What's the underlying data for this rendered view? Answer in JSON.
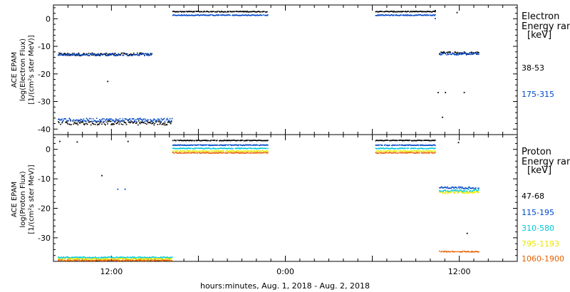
{
  "xlabel": "hours:minutes, Aug.  1, 2018 - Aug.  2, 2018",
  "x_ticks": [
    "12:00",
    "0:00",
    "12:00"
  ],
  "x_tick_hours": [
    12,
    24,
    36
  ],
  "x_range_hours": [
    8.0,
    40.0
  ],
  "colors": {
    "black": "#000000",
    "blue": "#0047c8",
    "cyan": "#00c8d8",
    "yellow": "#e8e800",
    "orange": "#e86000"
  },
  "chart_data": [
    {
      "type": "scatter",
      "id": "electron",
      "ylabel": [
        "ACE EPAM",
        "log(Electron Flux)",
        "[1/(cm²s ster MeV)]"
      ],
      "ylim": [
        -42,
        5
      ],
      "y_ticks": [
        0,
        -10,
        -20,
        -30,
        -40
      ],
      "grid": false,
      "legend_title": [
        "Electron",
        "Energy ranges",
        "[keV]"
      ],
      "series": [
        {
          "name": "38-53",
          "color": "#000000",
          "segments": [
            {
              "x0": 8.3,
              "x1": 14.8,
              "y": -12.7,
              "jitter": 0.5
            },
            {
              "x0": 16.2,
              "x1": 22.8,
              "y": 2.8,
              "jitter": 0.15
            },
            {
              "x0": 30.2,
              "x1": 34.3,
              "y": 2.8,
              "jitter": 0.15
            },
            {
              "x0": 34.6,
              "x1": 37.3,
              "y": -12.2,
              "jitter": 0.5
            },
            {
              "x0": 8.3,
              "x1": 16.2,
              "y": -37.5,
              "jitter": 0.8
            }
          ],
          "points": [
            [
              11.7,
              -22.5
            ],
            [
              34.5,
              -26.5
            ],
            [
              35.0,
              -26.5
            ],
            [
              36.3,
              -26.5
            ],
            [
              34.8,
              -35.5
            ],
            [
              34.3,
              3.2
            ],
            [
              35.8,
              2.5
            ]
          ]
        },
        {
          "name": "175-315",
          "color": "#0047c8",
          "segments": [
            {
              "x0": 8.3,
              "x1": 14.8,
              "y": -12.8,
              "jitter": 0.4
            },
            {
              "x0": 16.2,
              "x1": 22.8,
              "y": 1.5,
              "jitter": 0.15
            },
            {
              "x0": 30.2,
              "x1": 34.3,
              "y": 1.5,
              "jitter": 0.15
            },
            {
              "x0": 34.6,
              "x1": 37.3,
              "y": -12.5,
              "jitter": 0.4
            },
            {
              "x0": 8.3,
              "x1": 16.2,
              "y": -36.5,
              "jitter": 0.6
            }
          ],
          "points": [
            [
              34.3,
              0.3
            ]
          ]
        }
      ]
    },
    {
      "type": "scatter",
      "id": "proton",
      "ylabel": [
        "ACE EPAM",
        "log(Proton Flux)",
        "[1/(cm²s ster MeV)]"
      ],
      "ylim": [
        -38,
        5
      ],
      "y_ticks": [
        0,
        -10,
        -20,
        -30
      ],
      "grid": false,
      "legend_title": [
        "Proton",
        "Energy ranges",
        "[keV]"
      ],
      "series": [
        {
          "name": "47-68",
          "color": "#000000",
          "segments": [
            {
              "x0": 16.2,
              "x1": 22.8,
              "y": 3.2,
              "jitter": 0.12
            },
            {
              "x0": 30.2,
              "x1": 34.3,
              "y": 3.2,
              "jitter": 0.12
            }
          ],
          "points": [
            [
              8.4,
              2.9
            ],
            [
              9.6,
              2.7
            ],
            [
              11.3,
              -8.7
            ],
            [
              13.1,
              2.9
            ],
            [
              36.5,
              -28.3
            ],
            [
              35.9,
              2.5
            ]
          ]
        },
        {
          "name": "115-195",
          "color": "#0047c8",
          "segments": [
            {
              "x0": 16.2,
              "x1": 22.8,
              "y": 1.6,
              "jitter": 0.12
            },
            {
              "x0": 30.2,
              "x1": 34.3,
              "y": 1.6,
              "jitter": 0.12
            },
            {
              "x0": 34.6,
              "x1": 37.3,
              "y": -12.8,
              "jitter": 0.3
            }
          ],
          "points": [
            [
              12.4,
              -13.3
            ],
            [
              12.9,
              -13.3
            ]
          ]
        },
        {
          "name": "310-580",
          "color": "#00c8d8",
          "segments": [
            {
              "x0": 8.3,
              "x1": 16.2,
              "y": -36.5,
              "jitter": 0.2
            },
            {
              "x0": 16.2,
              "x1": 22.8,
              "y": 0.5,
              "jitter": 0.12
            },
            {
              "x0": 30.2,
              "x1": 34.3,
              "y": 0.5,
              "jitter": 0.12
            },
            {
              "x0": 34.6,
              "x1": 37.3,
              "y": -13.8,
              "jitter": 0.35
            }
          ],
          "points": []
        },
        {
          "name": "795-1193",
          "color": "#e8e800",
          "segments": [
            {
              "x0": 8.3,
              "x1": 16.2,
              "y": -37.0,
              "jitter": 0.2
            },
            {
              "x0": 16.2,
              "x1": 22.8,
              "y": -0.4,
              "jitter": 0.12
            },
            {
              "x0": 30.2,
              "x1": 34.3,
              "y": -0.4,
              "jitter": 0.12
            },
            {
              "x0": 34.6,
              "x1": 37.3,
              "y": -14.4,
              "jitter": 0.35
            }
          ],
          "points": []
        },
        {
          "name": "1060-1900",
          "color": "#e86000",
          "segments": [
            {
              "x0": 8.3,
              "x1": 16.2,
              "y": -37.5,
              "jitter": 0.15
            },
            {
              "x0": 16.2,
              "x1": 22.8,
              "y": -1.0,
              "jitter": 0.12
            },
            {
              "x0": 30.2,
              "x1": 34.3,
              "y": -1.0,
              "jitter": 0.12
            },
            {
              "x0": 34.6,
              "x1": 37.3,
              "y": -34.5,
              "jitter": 0.15
            }
          ],
          "points": []
        }
      ]
    }
  ]
}
